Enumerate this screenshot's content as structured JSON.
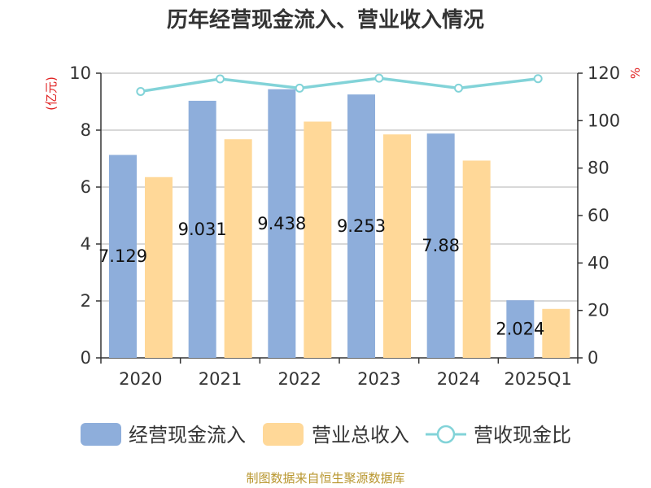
{
  "chart_data": {
    "type": "bar",
    "title": "历年经营现金流入、营业收入情况",
    "categories": [
      "2020",
      "2021",
      "2022",
      "2023",
      "2024",
      "2025Q1"
    ],
    "series": [
      {
        "name": "经营现金流入",
        "type": "bar",
        "axis": "left",
        "color": "#8eaedb",
        "values": [
          7.129,
          9.031,
          9.438,
          9.253,
          7.88,
          2.024
        ]
      },
      {
        "name": "营业总收入",
        "type": "bar",
        "axis": "left",
        "color": "#ffd898",
        "values": [
          6.35,
          7.68,
          8.3,
          7.85,
          6.93,
          1.72
        ]
      },
      {
        "name": "营收现金比",
        "type": "line",
        "axis": "right",
        "color": "#82d3d8",
        "values": [
          112.3,
          117.6,
          113.7,
          117.9,
          113.7,
          117.7
        ]
      }
    ],
    "data_labels": [
      "7.129",
      "9.031",
      "9.438",
      "9.253",
      "7.88",
      "2.024"
    ],
    "left_axis": {
      "label": "(亿元)",
      "ylim": [
        0,
        10
      ],
      "ticks": [
        "0",
        "2",
        "4",
        "6",
        "8",
        "10"
      ]
    },
    "right_axis": {
      "label": "%",
      "ylim": [
        0,
        120
      ],
      "ticks": [
        "0",
        "20",
        "40",
        "60",
        "80",
        "100",
        "120"
      ]
    },
    "grid": true,
    "legend_position": "bottom",
    "source": "制图数据来自恒生聚源数据库"
  },
  "colors": {
    "axis_label": "#e02020",
    "source": "#b8962e",
    "grid": "#cccccc",
    "title": "#333333"
  }
}
